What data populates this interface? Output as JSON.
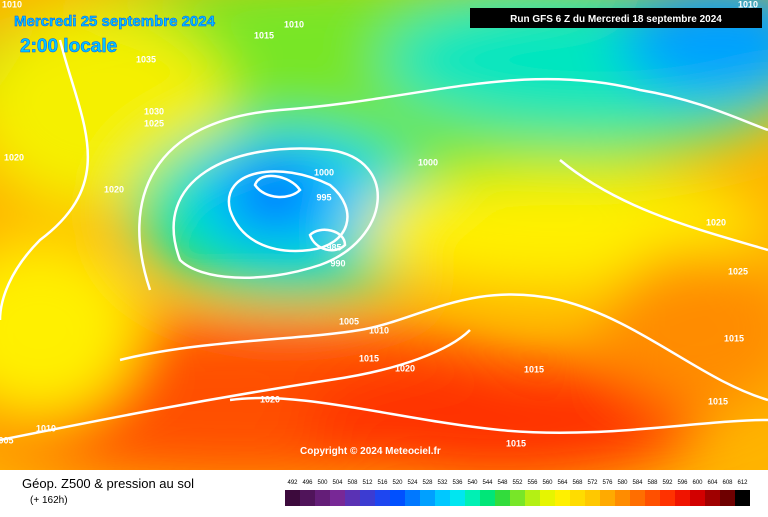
{
  "header": {
    "date": "Mercredi 25 septembre 2024",
    "time": "2:00 locale",
    "run": "Run GFS 6 Z du Mercredi 18 septembre 2024"
  },
  "isobar_labels": [
    "1010",
    "1015",
    "1010",
    "1035",
    "1030",
    "1025",
    "1020",
    "1020",
    "1000",
    "995",
    "985",
    "990",
    "1000",
    "1005",
    "1010",
    "1015",
    "1020",
    "1020",
    "1015",
    "1015",
    "1020",
    "1025",
    "1015",
    "1015",
    "005",
    "1010",
    "1010"
  ],
  "copyright": "Copyright © 2024 Meteociel.fr",
  "footer": {
    "title": "Géop. Z500 & pression au sol",
    "lead": "(+ 162h)"
  },
  "colorbar": {
    "labels": [
      "492",
      "496",
      "500",
      "504",
      "508",
      "512",
      "516",
      "520",
      "524",
      "528",
      "532",
      "536",
      "540",
      "544",
      "548",
      "552",
      "556",
      "560",
      "564",
      "568",
      "572",
      "576",
      "580",
      "584",
      "588",
      "592",
      "596",
      "600",
      "604",
      "608",
      "612"
    ],
    "colors": [
      "#3c0a3c",
      "#50145a",
      "#641e78",
      "#782896",
      "#5a32b4",
      "#3c3cd2",
      "#1e46f0",
      "#0050ff",
      "#0078ff",
      "#00a0ff",
      "#00c8ff",
      "#00e6f0",
      "#00f0b4",
      "#00e678",
      "#32dc3c",
      "#78e628",
      "#b4f014",
      "#e6f500",
      "#fff000",
      "#ffdc00",
      "#ffc800",
      "#ffaa00",
      "#ff8c00",
      "#ff6e00",
      "#ff5000",
      "#ff3200",
      "#f01400",
      "#d20000",
      "#a00000",
      "#6e0000",
      "#000000"
    ]
  }
}
